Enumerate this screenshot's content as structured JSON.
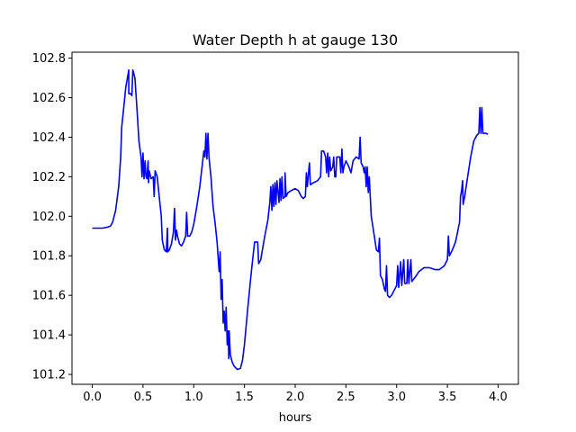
{
  "chart_data": {
    "type": "line",
    "title": "Water Depth h at gauge 130",
    "xlabel": "hours",
    "ylabel": "",
    "xlim": [
      -0.2,
      4.2
    ],
    "ylim": [
      101.15,
      102.83
    ],
    "x_ticks": [
      0.0,
      0.5,
      1.0,
      1.5,
      2.0,
      2.5,
      3.0,
      3.5,
      4.0
    ],
    "x_tick_labels": [
      "0.0",
      "0.5",
      "1.0",
      "1.5",
      "2.0",
      "2.5",
      "3.0",
      "3.5",
      "4.0"
    ],
    "y_ticks": [
      101.2,
      101.4,
      101.6,
      101.8,
      102.0,
      102.2,
      102.4,
      102.6,
      102.8
    ],
    "y_tick_labels": [
      "101.2",
      "101.4",
      "101.6",
      "101.8",
      "102.0",
      "102.2",
      "102.4",
      "102.6",
      "102.8"
    ],
    "grid": false,
    "series": [
      {
        "color": "#0000ff",
        "points": [
          [
            0.0,
            101.94
          ],
          [
            0.1,
            101.94
          ],
          [
            0.15,
            101.945
          ],
          [
            0.18,
            101.95
          ],
          [
            0.2,
            101.97
          ],
          [
            0.23,
            102.03
          ],
          [
            0.26,
            102.15
          ],
          [
            0.28,
            102.3
          ],
          [
            0.29,
            102.45
          ],
          [
            0.31,
            102.55
          ],
          [
            0.33,
            102.65
          ],
          [
            0.36,
            102.74
          ],
          [
            0.36,
            102.62
          ],
          [
            0.38,
            102.62
          ],
          [
            0.39,
            102.61
          ],
          [
            0.4,
            102.74
          ],
          [
            0.42,
            102.7
          ],
          [
            0.44,
            102.55
          ],
          [
            0.46,
            102.38
          ],
          [
            0.48,
            102.3
          ],
          [
            0.49,
            102.2
          ],
          [
            0.5,
            102.32
          ],
          [
            0.51,
            102.19
          ],
          [
            0.52,
            102.28
          ],
          [
            0.53,
            102.2
          ],
          [
            0.54,
            102.19
          ],
          [
            0.55,
            102.28
          ],
          [
            0.555,
            102.17
          ],
          [
            0.56,
            102.23
          ],
          [
            0.58,
            102.19
          ],
          [
            0.6,
            102.2
          ],
          [
            0.61,
            102.1
          ],
          [
            0.62,
            102.23
          ],
          [
            0.64,
            102.2
          ],
          [
            0.66,
            102.1
          ],
          [
            0.68,
            102.0
          ],
          [
            0.69,
            101.88
          ],
          [
            0.71,
            101.83
          ],
          [
            0.73,
            101.82
          ],
          [
            0.74,
            101.94
          ],
          [
            0.745,
            101.82
          ],
          [
            0.76,
            101.83
          ],
          [
            0.78,
            101.86
          ],
          [
            0.8,
            101.92
          ],
          [
            0.81,
            102.04
          ],
          [
            0.82,
            101.88
          ],
          [
            0.83,
            101.93
          ],
          [
            0.84,
            101.9
          ],
          [
            0.86,
            101.86
          ],
          [
            0.88,
            101.85
          ],
          [
            0.9,
            101.87
          ],
          [
            0.92,
            101.9
          ],
          [
            0.93,
            102.02
          ],
          [
            0.94,
            101.9
          ],
          [
            0.96,
            101.9
          ],
          [
            0.98,
            101.92
          ],
          [
            1.0,
            101.96
          ],
          [
            1.03,
            102.05
          ],
          [
            1.06,
            102.15
          ],
          [
            1.1,
            102.33
          ],
          [
            1.11,
            102.3
          ],
          [
            1.12,
            102.42
          ],
          [
            1.13,
            102.29
          ],
          [
            1.14,
            102.42
          ],
          [
            1.15,
            102.3
          ],
          [
            1.17,
            102.2
          ],
          [
            1.19,
            102.05
          ],
          [
            1.21,
            101.97
          ],
          [
            1.23,
            101.87
          ],
          [
            1.25,
            101.72
          ],
          [
            1.26,
            101.82
          ],
          [
            1.27,
            101.58
          ],
          [
            1.28,
            101.68
          ],
          [
            1.29,
            101.46
          ],
          [
            1.3,
            101.52
          ],
          [
            1.31,
            101.42
          ],
          [
            1.32,
            101.54
          ],
          [
            1.33,
            101.35
          ],
          [
            1.34,
            101.42
          ],
          [
            1.345,
            101.28
          ],
          [
            1.35,
            101.42
          ],
          [
            1.36,
            101.3
          ],
          [
            1.38,
            101.26
          ],
          [
            1.4,
            101.24
          ],
          [
            1.43,
            101.225
          ],
          [
            1.46,
            101.23
          ],
          [
            1.48,
            101.27
          ],
          [
            1.5,
            101.35
          ],
          [
            1.53,
            101.52
          ],
          [
            1.56,
            101.68
          ],
          [
            1.58,
            101.78
          ],
          [
            1.6,
            101.87
          ],
          [
            1.63,
            101.87
          ],
          [
            1.64,
            101.76
          ],
          [
            1.66,
            101.78
          ],
          [
            1.7,
            101.9
          ],
          [
            1.73,
            101.98
          ],
          [
            1.75,
            102.07
          ],
          [
            1.76,
            102.15
          ],
          [
            1.77,
            102.03
          ],
          [
            1.78,
            102.16
          ],
          [
            1.79,
            102.05
          ],
          [
            1.8,
            102.17
          ],
          [
            1.81,
            102.06
          ],
          [
            1.82,
            102.18
          ],
          [
            1.84,
            102.07
          ],
          [
            1.85,
            102.19
          ],
          [
            1.86,
            102.08
          ],
          [
            1.87,
            102.2
          ],
          [
            1.88,
            102.09
          ],
          [
            1.9,
            102.1
          ],
          [
            1.9,
            102.22
          ],
          [
            1.91,
            102.1
          ],
          [
            1.93,
            102.12
          ],
          [
            1.96,
            102.13
          ],
          [
            2.0,
            102.14
          ],
          [
            2.03,
            102.13
          ],
          [
            2.06,
            102.1
          ],
          [
            2.08,
            102.09
          ],
          [
            2.1,
            102.1
          ],
          [
            2.11,
            102.22
          ],
          [
            2.12,
            102.15
          ],
          [
            2.14,
            102.27
          ],
          [
            2.15,
            102.16
          ],
          [
            2.18,
            102.17
          ],
          [
            2.22,
            102.18
          ],
          [
            2.25,
            102.2
          ],
          [
            2.26,
            102.33
          ],
          [
            2.28,
            102.33
          ],
          [
            2.3,
            102.3
          ],
          [
            2.31,
            102.22
          ],
          [
            2.32,
            102.32
          ],
          [
            2.33,
            102.2
          ],
          [
            2.34,
            102.3
          ],
          [
            2.35,
            102.23
          ],
          [
            2.37,
            102.25
          ],
          [
            2.38,
            102.3
          ],
          [
            2.39,
            102.2
          ],
          [
            2.4,
            102.2
          ],
          [
            2.41,
            102.3
          ],
          [
            2.44,
            102.3
          ],
          [
            2.45,
            102.22
          ],
          [
            2.46,
            102.34
          ],
          [
            2.47,
            102.22
          ],
          [
            2.48,
            102.25
          ],
          [
            2.5,
            102.28
          ],
          [
            2.53,
            102.25
          ],
          [
            2.55,
            102.22
          ],
          [
            2.57,
            102.28
          ],
          [
            2.6,
            102.3
          ],
          [
            2.63,
            102.29
          ],
          [
            2.64,
            102.4
          ],
          [
            2.65,
            102.27
          ],
          [
            2.67,
            102.25
          ],
          [
            2.68,
            102.22
          ],
          [
            2.69,
            102.25
          ],
          [
            2.7,
            102.15
          ],
          [
            2.71,
            102.25
          ],
          [
            2.72,
            102.12
          ],
          [
            2.73,
            102.2
          ],
          [
            2.74,
            102.1
          ],
          [
            2.75,
            102.0
          ],
          [
            2.78,
            101.9
          ],
          [
            2.8,
            101.83
          ],
          [
            2.82,
            101.82
          ],
          [
            2.83,
            101.89
          ],
          [
            2.84,
            101.7
          ],
          [
            2.86,
            101.68
          ],
          [
            2.88,
            101.63
          ],
          [
            2.89,
            101.62
          ],
          [
            2.9,
            101.75
          ],
          [
            2.91,
            101.6
          ],
          [
            2.93,
            101.59
          ],
          [
            2.95,
            101.6
          ],
          [
            2.97,
            101.62
          ],
          [
            3.0,
            101.65
          ],
          [
            3.01,
            101.75
          ],
          [
            3.02,
            101.64
          ],
          [
            3.04,
            101.77
          ],
          [
            3.05,
            101.65
          ],
          [
            3.07,
            101.78
          ],
          [
            3.08,
            101.66
          ],
          [
            3.1,
            101.66
          ],
          [
            3.11,
            101.78
          ],
          [
            3.12,
            101.66
          ],
          [
            3.14,
            101.78
          ],
          [
            3.15,
            101.67
          ],
          [
            3.18,
            101.69
          ],
          [
            3.22,
            101.72
          ],
          [
            3.27,
            101.74
          ],
          [
            3.32,
            101.74
          ],
          [
            3.38,
            101.73
          ],
          [
            3.42,
            101.73
          ],
          [
            3.47,
            101.75
          ],
          [
            3.5,
            101.78
          ],
          [
            3.51,
            101.9
          ],
          [
            3.52,
            101.8
          ],
          [
            3.55,
            101.83
          ],
          [
            3.58,
            101.87
          ],
          [
            3.6,
            101.92
          ],
          [
            3.62,
            101.97
          ],
          [
            3.63,
            102.1
          ],
          [
            3.64,
            102.13
          ],
          [
            3.65,
            102.18
          ],
          [
            3.655,
            102.06
          ],
          [
            3.67,
            102.1
          ],
          [
            3.7,
            102.2
          ],
          [
            3.73,
            102.3
          ],
          [
            3.76,
            102.38
          ],
          [
            3.79,
            102.41
          ],
          [
            3.81,
            102.42
          ],
          [
            3.82,
            102.55
          ],
          [
            3.83,
            102.42
          ],
          [
            3.84,
            102.55
          ],
          [
            3.85,
            102.42
          ],
          [
            3.88,
            102.42
          ],
          [
            3.9,
            102.415
          ]
        ]
      }
    ]
  }
}
